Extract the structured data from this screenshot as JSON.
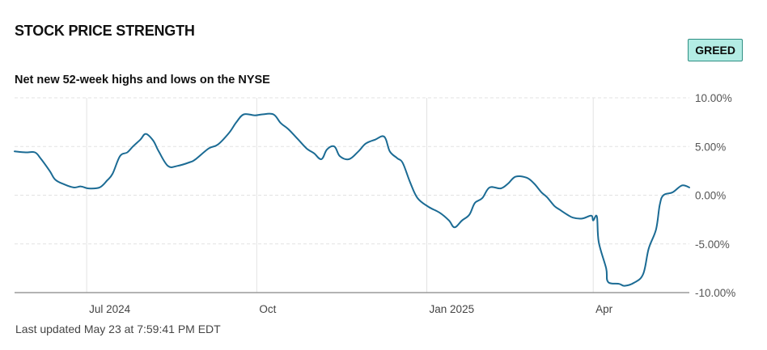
{
  "header": {
    "title": "STOCK PRICE STRENGTH",
    "badge": "GREED",
    "subtitle": "Net new 52-week highs and lows on the NYSE"
  },
  "footer": {
    "last_updated": "Last updated May 23 at 7:59:41 PM EDT"
  },
  "colors": {
    "line": "#1b6b94",
    "grid": "#e2e2e2",
    "axis": "#9a9a9a",
    "badge_bg": "#b3ece4",
    "badge_border": "#2f8f83"
  },
  "chart_data": {
    "type": "line",
    "title": "STOCK PRICE STRENGTH",
    "subtitle": "Net new 52-week highs and lows on the NYSE",
    "xlabel": "",
    "ylabel": "",
    "x_range": [
      "2024-05-23",
      "2025-05-23"
    ],
    "ylim": [
      -10,
      10
    ],
    "y_ticks": [
      10,
      5,
      0,
      -5,
      -10
    ],
    "y_tick_labels": [
      "10.00%",
      "5.00%",
      "0.00%",
      "-5.00%",
      "-10.00%"
    ],
    "y_axis_side": "right",
    "x_ticks": [
      {
        "date": "2024-07-01",
        "label": "Jul 2024"
      },
      {
        "date": "2024-10-01",
        "label": "Oct"
      },
      {
        "date": "2025-01-01",
        "label": "Jan 2025"
      },
      {
        "date": "2025-04-01",
        "label": "Apr"
      }
    ],
    "grid": {
      "horizontal": "dashed",
      "vertical": "solid"
    },
    "legend": "none",
    "series": [
      {
        "points": [
          [
            "2024-05-23",
            4.5
          ],
          [
            "2024-05-29",
            4.4
          ],
          [
            "2024-06-03",
            4.4
          ],
          [
            "2024-06-06",
            3.8
          ],
          [
            "2024-06-11",
            2.5
          ],
          [
            "2024-06-14",
            1.6
          ],
          [
            "2024-06-19",
            1.1
          ],
          [
            "2024-06-24",
            0.8
          ],
          [
            "2024-06-28",
            0.9
          ],
          [
            "2024-07-02",
            0.7
          ],
          [
            "2024-07-08",
            0.8
          ],
          [
            "2024-07-12",
            1.5
          ],
          [
            "2024-07-15",
            2.2
          ],
          [
            "2024-07-19",
            4.0
          ],
          [
            "2024-07-23",
            4.4
          ],
          [
            "2024-07-26",
            5.0
          ],
          [
            "2024-07-30",
            5.7
          ],
          [
            "2024-08-02",
            6.3
          ],
          [
            "2024-08-06",
            5.6
          ],
          [
            "2024-08-09",
            4.5
          ],
          [
            "2024-08-14",
            3.0
          ],
          [
            "2024-08-19",
            3.0
          ],
          [
            "2024-08-26",
            3.4
          ],
          [
            "2024-08-29",
            3.7
          ],
          [
            "2024-09-05",
            4.8
          ],
          [
            "2024-09-10",
            5.2
          ],
          [
            "2024-09-16",
            6.4
          ],
          [
            "2024-09-20",
            7.5
          ],
          [
            "2024-09-24",
            8.3
          ],
          [
            "2024-09-30",
            8.2
          ],
          [
            "2024-10-04",
            8.3
          ],
          [
            "2024-10-10",
            8.3
          ],
          [
            "2024-10-14",
            7.4
          ],
          [
            "2024-10-18",
            6.8
          ],
          [
            "2024-10-23",
            5.8
          ],
          [
            "2024-10-28",
            4.8
          ],
          [
            "2024-11-01",
            4.3
          ],
          [
            "2024-11-05",
            3.7
          ],
          [
            "2024-11-08",
            4.7
          ],
          [
            "2024-11-12",
            5.0
          ],
          [
            "2024-11-15",
            4.0
          ],
          [
            "2024-11-20",
            3.7
          ],
          [
            "2024-11-25",
            4.5
          ],
          [
            "2024-11-29",
            5.3
          ],
          [
            "2024-12-04",
            5.7
          ],
          [
            "2024-12-09",
            6.0
          ],
          [
            "2024-12-12",
            4.5
          ],
          [
            "2024-12-16",
            3.8
          ],
          [
            "2024-12-19",
            3.3
          ],
          [
            "2024-12-23",
            1.3
          ],
          [
            "2024-12-27",
            -0.3
          ],
          [
            "2025-01-02",
            -1.2
          ],
          [
            "2025-01-08",
            -1.8
          ],
          [
            "2025-01-13",
            -2.6
          ],
          [
            "2025-01-16",
            -3.3
          ],
          [
            "2025-01-20",
            -2.6
          ],
          [
            "2025-01-24",
            -2.0
          ],
          [
            "2025-01-27",
            -0.8
          ],
          [
            "2025-01-31",
            -0.3
          ],
          [
            "2025-02-04",
            0.8
          ],
          [
            "2025-02-10",
            0.7
          ],
          [
            "2025-02-14",
            1.2
          ],
          [
            "2025-02-18",
            1.9
          ],
          [
            "2025-02-24",
            1.8
          ],
          [
            "2025-02-28",
            1.2
          ],
          [
            "2025-03-04",
            0.3
          ],
          [
            "2025-03-07",
            -0.2
          ],
          [
            "2025-03-11",
            -1.1
          ],
          [
            "2025-03-14",
            -1.5
          ],
          [
            "2025-03-18",
            -2.0
          ],
          [
            "2025-03-21",
            -2.3
          ],
          [
            "2025-03-26",
            -2.4
          ],
          [
            "2025-03-31",
            -2.1
          ],
          [
            "2025-04-01",
            -2.6
          ],
          [
            "2025-04-03",
            -2.2
          ],
          [
            "2025-04-04",
            -4.8
          ],
          [
            "2025-04-08",
            -7.5
          ],
          [
            "2025-04-09",
            -8.9
          ],
          [
            "2025-04-15",
            -9.1
          ],
          [
            "2025-04-18",
            -9.3
          ],
          [
            "2025-04-23",
            -9.0
          ],
          [
            "2025-04-28",
            -8.1
          ],
          [
            "2025-05-01",
            -5.5
          ],
          [
            "2025-05-05",
            -3.5
          ],
          [
            "2025-05-07",
            -1.0
          ],
          [
            "2025-05-09",
            0.0
          ],
          [
            "2025-05-14",
            0.3
          ],
          [
            "2025-05-19",
            1.0
          ],
          [
            "2025-05-23",
            0.8
          ]
        ]
      }
    ]
  }
}
